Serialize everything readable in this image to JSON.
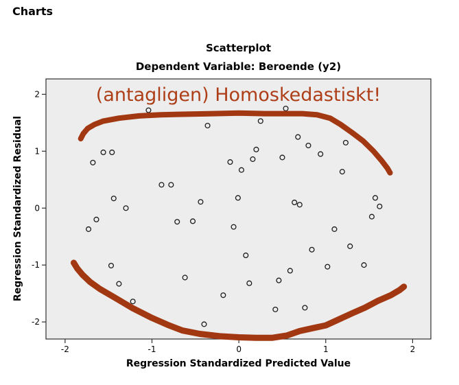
{
  "heading": "Charts",
  "chart": {
    "title": "Scatterplot",
    "subtitle": "Dependent Variable: Beroende (y2)",
    "x_axis_label": "Regression Standardized Predicted Value",
    "y_axis_label": "Regression Standardized Residual",
    "annotation": {
      "text": "(antagligen) Homoskedastiskt!",
      "text_color": "#ad3e18",
      "stroke_color": "#a23812"
    },
    "colors": {
      "plot_background": "#ededed",
      "plot_border": "#2f2f2f",
      "marker_outline": "#1c1c1c",
      "tick_text": "#000000"
    }
  },
  "chart_data": {
    "type": "scatter",
    "title": "Scatterplot",
    "subtitle": "Dependent Variable: Beroende (y2)",
    "xlabel": "Regression Standardized Predicted Value",
    "ylabel": "Regression Standardized Residual",
    "xlim": [
      -2.22,
      2.21
    ],
    "ylim": [
      -2.3,
      2.27
    ],
    "x_ticks": [
      -2,
      -1,
      0,
      1,
      2
    ],
    "y_ticks": [
      -2,
      -1,
      0,
      1,
      2
    ],
    "grid": false,
    "legend": null,
    "marker_style": "open-circle",
    "points": [
      [
        -1.04,
        1.72
      ],
      [
        -1.56,
        0.98
      ],
      [
        -1.46,
        0.98
      ],
      [
        -1.68,
        0.8
      ],
      [
        -0.89,
        0.41
      ],
      [
        -0.78,
        0.41
      ],
      [
        -1.44,
        0.17
      ],
      [
        -1.3,
        0.0
      ],
      [
        0.54,
        1.75
      ],
      [
        0.25,
        1.53
      ],
      [
        -0.36,
        1.45
      ],
      [
        0.68,
        1.25
      ],
      [
        0.2,
        1.03
      ],
      [
        0.5,
        0.89
      ],
      [
        0.16,
        0.86
      ],
      [
        -0.1,
        0.81
      ],
      [
        0.03,
        0.67
      ],
      [
        -0.01,
        0.18
      ],
      [
        -0.44,
        0.11
      ],
      [
        0.64,
        0.1
      ],
      [
        0.7,
        0.06
      ],
      [
        0.8,
        1.1
      ],
      [
        0.94,
        0.95
      ],
      [
        1.23,
        1.15
      ],
      [
        1.19,
        0.64
      ],
      [
        1.57,
        0.18
      ],
      [
        1.62,
        0.03
      ],
      [
        -1.64,
        -0.2
      ],
      [
        -1.73,
        -0.37
      ],
      [
        -1.47,
        -1.01
      ],
      [
        -1.38,
        -1.33
      ],
      [
        -1.22,
        -1.64
      ],
      [
        -0.71,
        -0.24
      ],
      [
        -0.53,
        -0.23
      ],
      [
        -0.06,
        -0.33
      ],
      [
        0.08,
        -0.83
      ],
      [
        0.59,
        -1.1
      ],
      [
        -0.62,
        -1.22
      ],
      [
        0.46,
        -1.27
      ],
      [
        0.12,
        -1.32
      ],
      [
        -0.18,
        -1.53
      ],
      [
        0.42,
        -1.78
      ],
      [
        -0.4,
        -2.04
      ],
      [
        0.76,
        -1.75
      ],
      [
        1.53,
        -0.15
      ],
      [
        1.1,
        -0.37
      ],
      [
        0.84,
        -0.73
      ],
      [
        1.28,
        -0.67
      ],
      [
        1.02,
        -1.03
      ],
      [
        1.44,
        -1.0
      ]
    ],
    "annotation_strokes": [
      [
        [
          -1.82,
          1.22
        ],
        [
          -1.79,
          1.31
        ],
        [
          -1.74,
          1.4
        ],
        [
          -1.66,
          1.47
        ],
        [
          -1.56,
          1.53
        ],
        [
          -1.38,
          1.58
        ],
        [
          -1.15,
          1.62
        ],
        [
          -0.9,
          1.64
        ],
        [
          -0.6,
          1.65
        ],
        [
          -0.3,
          1.66
        ],
        [
          0.0,
          1.67
        ],
        [
          0.3,
          1.66
        ],
        [
          0.55,
          1.66
        ],
        [
          0.73,
          1.66
        ],
        [
          0.9,
          1.64
        ],
        [
          1.05,
          1.58
        ],
        [
          1.17,
          1.47
        ],
        [
          1.3,
          1.33
        ],
        [
          1.43,
          1.18
        ],
        [
          1.55,
          1.0
        ],
        [
          1.64,
          0.84
        ],
        [
          1.71,
          0.7
        ],
        [
          1.74,
          0.62
        ]
      ],
      [
        [
          -1.9,
          -0.96
        ],
        [
          -1.86,
          -1.06
        ],
        [
          -1.8,
          -1.17
        ],
        [
          -1.71,
          -1.3
        ],
        [
          -1.6,
          -1.42
        ],
        [
          -1.43,
          -1.57
        ],
        [
          -1.22,
          -1.76
        ],
        [
          -1.0,
          -1.93
        ],
        [
          -0.82,
          -2.05
        ],
        [
          -0.65,
          -2.15
        ],
        [
          -0.45,
          -2.21
        ],
        [
          -0.22,
          -2.25
        ],
        [
          0.0,
          -2.27
        ],
        [
          0.2,
          -2.28
        ],
        [
          0.38,
          -2.28
        ],
        [
          0.55,
          -2.24
        ],
        [
          0.7,
          -2.16
        ],
        [
          0.85,
          -2.11
        ],
        [
          1.0,
          -2.06
        ],
        [
          1.13,
          -1.97
        ],
        [
          1.3,
          -1.85
        ],
        [
          1.45,
          -1.75
        ],
        [
          1.6,
          -1.63
        ],
        [
          1.75,
          -1.53
        ],
        [
          1.85,
          -1.44
        ],
        [
          1.9,
          -1.38
        ]
      ]
    ]
  }
}
